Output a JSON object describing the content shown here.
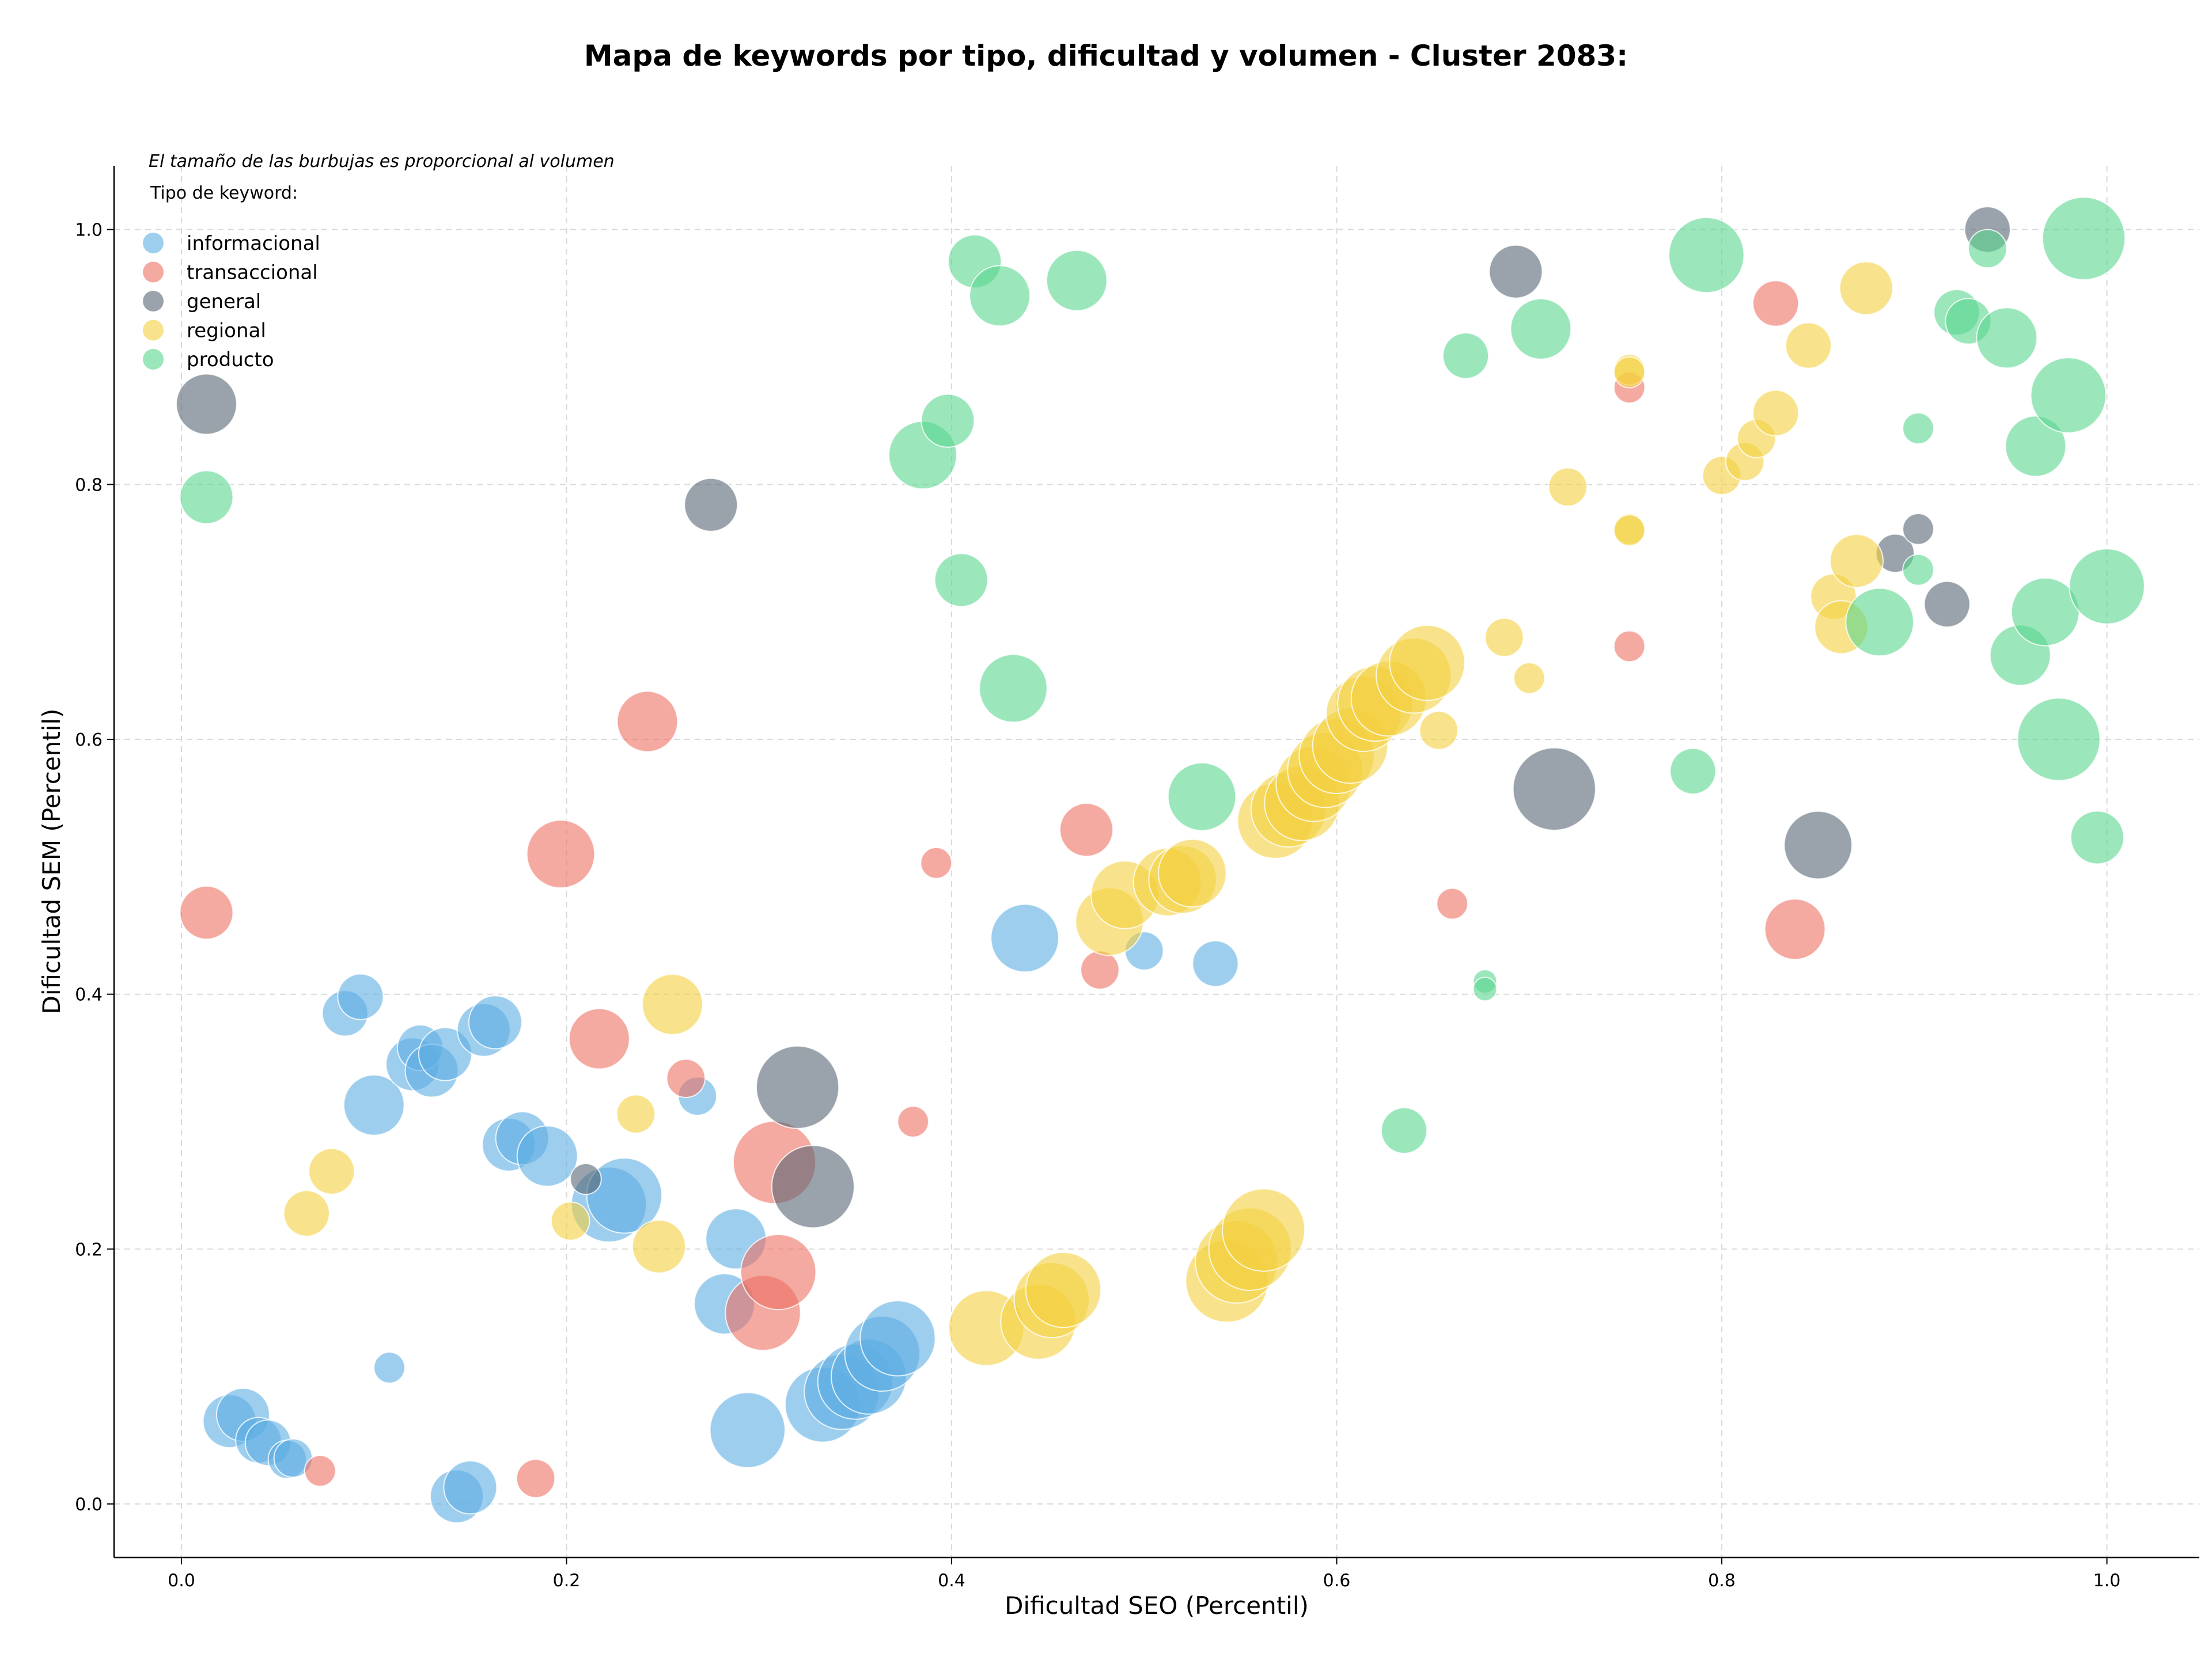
{
  "chart_data": {
    "type": "scatter",
    "title": "Mapa de keywords por tipo, dificultad y volumen - Cluster 2083:",
    "xlabel": "Dificultad SEO (Percentil)",
    "ylabel": "Dificultad SEM (Percentil)",
    "xlim": [
      -0.035,
      1.048
    ],
    "ylim": [
      -0.042,
      1.05
    ],
    "x_ticks": [
      "0.0",
      "0.2",
      "0.4",
      "0.6",
      "0.8",
      "1.0"
    ],
    "y_ticks": [
      "0.0",
      "0.2",
      "0.4",
      "0.6",
      "0.8",
      "1.0"
    ],
    "grid": true,
    "note": "El tamaño de las burbujas es proporcional al volumen",
    "legend_title": "Tipo de keyword:",
    "legend_position": "top-left",
    "size_scale": "relative volume (1-10)",
    "series": [
      {
        "name": "informacional",
        "color": "#5DADE2",
        "points": [
          [
            0.025,
            0.065,
            5
          ],
          [
            0.032,
            0.07,
            5
          ],
          [
            0.04,
            0.05,
            4
          ],
          [
            0.045,
            0.048,
            4
          ],
          [
            0.055,
            0.035,
            3
          ],
          [
            0.058,
            0.036,
            3
          ],
          [
            0.108,
            0.107,
            2
          ],
          [
            0.143,
            0.006,
            5
          ],
          [
            0.15,
            0.013,
            5
          ],
          [
            0.085,
            0.385,
            4
          ],
          [
            0.093,
            0.398,
            4
          ],
          [
            0.1,
            0.313,
            6
          ],
          [
            0.12,
            0.345,
            5
          ],
          [
            0.124,
            0.358,
            4
          ],
          [
            0.13,
            0.34,
            5
          ],
          [
            0.137,
            0.353,
            5
          ],
          [
            0.157,
            0.372,
            5
          ],
          [
            0.163,
            0.378,
            5
          ],
          [
            0.17,
            0.282,
            5
          ],
          [
            0.177,
            0.287,
            5
          ],
          [
            0.19,
            0.273,
            6
          ],
          [
            0.222,
            0.235,
            8
          ],
          [
            0.23,
            0.242,
            8
          ],
          [
            0.268,
            0.32,
            3
          ],
          [
            0.282,
            0.157,
            6
          ],
          [
            0.288,
            0.208,
            6
          ],
          [
            0.294,
            0.058,
            8
          ],
          [
            0.333,
            0.078,
            8
          ],
          [
            0.343,
            0.088,
            8
          ],
          [
            0.35,
            0.096,
            8
          ],
          [
            0.357,
            0.1,
            8
          ],
          [
            0.364,
            0.118,
            8
          ],
          [
            0.372,
            0.13,
            8
          ],
          [
            0.438,
            0.444,
            7
          ],
          [
            0.5,
            0.434,
            3
          ],
          [
            0.537,
            0.424,
            4
          ]
        ]
      },
      {
        "name": "transaccional",
        "color": "#EC7063",
        "points": [
          [
            0.013,
            0.464,
            5
          ],
          [
            0.072,
            0.026,
            2
          ],
          [
            0.184,
            0.02,
            3
          ],
          [
            0.197,
            0.51,
            7
          ],
          [
            0.217,
            0.365,
            6
          ],
          [
            0.242,
            0.614,
            6
          ],
          [
            0.262,
            0.334,
            3
          ],
          [
            0.302,
            0.15,
            8
          ],
          [
            0.308,
            0.268,
            9
          ],
          [
            0.31,
            0.182,
            8
          ],
          [
            0.38,
            0.3,
            2
          ],
          [
            0.392,
            0.503,
            2
          ],
          [
            0.47,
            0.529,
            5
          ],
          [
            0.477,
            0.419,
            3
          ],
          [
            0.66,
            0.471,
            2
          ],
          [
            0.752,
            0.876,
            2
          ],
          [
            0.752,
            0.673,
            2
          ],
          [
            0.828,
            0.942,
            4
          ],
          [
            0.838,
            0.451,
            6
          ]
        ]
      },
      {
        "name": "general",
        "color": "#566573",
        "points": [
          [
            0.013,
            0.863,
            6
          ],
          [
            0.21,
            0.255,
            2
          ],
          [
            0.275,
            0.784,
            5
          ],
          [
            0.32,
            0.327,
            9
          ],
          [
            0.328,
            0.249,
            9
          ],
          [
            0.693,
            0.967,
            5
          ],
          [
            0.713,
            0.561,
            9
          ],
          [
            0.85,
            0.517,
            7
          ],
          [
            0.89,
            0.746,
            3
          ],
          [
            0.902,
            0.765,
            2
          ],
          [
            0.917,
            0.706,
            4
          ],
          [
            0.938,
            1.0,
            4
          ]
        ]
      },
      {
        "name": "regional",
        "color": "#F4D03F",
        "points": [
          [
            0.065,
            0.228,
            4
          ],
          [
            0.078,
            0.261,
            4
          ],
          [
            0.202,
            0.222,
            3
          ],
          [
            0.236,
            0.306,
            3
          ],
          [
            0.248,
            0.202,
            5
          ],
          [
            0.255,
            0.392,
            6
          ],
          [
            0.418,
            0.138,
            8
          ],
          [
            0.445,
            0.143,
            8
          ],
          [
            0.452,
            0.16,
            8
          ],
          [
            0.458,
            0.168,
            8
          ],
          [
            0.482,
            0.457,
            7
          ],
          [
            0.49,
            0.478,
            7
          ],
          [
            0.512,
            0.488,
            7
          ],
          [
            0.52,
            0.49,
            7
          ],
          [
            0.525,
            0.495,
            7
          ],
          [
            0.543,
            0.175,
            9
          ],
          [
            0.548,
            0.19,
            9
          ],
          [
            0.555,
            0.2,
            9
          ],
          [
            0.562,
            0.215,
            9
          ],
          [
            0.568,
            0.536,
            8
          ],
          [
            0.575,
            0.545,
            8
          ],
          [
            0.582,
            0.55,
            8
          ],
          [
            0.588,
            0.565,
            8
          ],
          [
            0.594,
            0.576,
            8
          ],
          [
            0.6,
            0.587,
            8
          ],
          [
            0.607,
            0.595,
            8
          ],
          [
            0.614,
            0.62,
            8
          ],
          [
            0.62,
            0.628,
            8
          ],
          [
            0.627,
            0.632,
            8
          ],
          [
            0.64,
            0.65,
            8
          ],
          [
            0.647,
            0.66,
            8
          ],
          [
            0.653,
            0.607,
            3
          ],
          [
            0.687,
            0.68,
            3
          ],
          [
            0.7,
            0.648,
            2
          ],
          [
            0.72,
            0.798,
            3
          ],
          [
            0.752,
            0.89,
            2
          ],
          [
            0.752,
            0.888,
            2
          ],
          [
            0.752,
            0.765,
            2
          ],
          [
            0.752,
            0.764,
            2
          ],
          [
            0.8,
            0.807,
            3
          ],
          [
            0.812,
            0.818,
            3
          ],
          [
            0.818,
            0.836,
            3
          ],
          [
            0.828,
            0.856,
            4
          ],
          [
            0.845,
            0.909,
            4
          ],
          [
            0.858,
            0.712,
            4
          ],
          [
            0.862,
            0.688,
            5
          ],
          [
            0.87,
            0.74,
            5
          ],
          [
            0.875,
            0.954,
            5
          ]
        ]
      },
      {
        "name": "producto",
        "color": "#58D68D",
        "points": [
          [
            0.013,
            0.79,
            5
          ],
          [
            0.385,
            0.823,
            7
          ],
          [
            0.398,
            0.85,
            5
          ],
          [
            0.405,
            0.725,
            5
          ],
          [
            0.412,
            0.975,
            5
          ],
          [
            0.425,
            0.948,
            6
          ],
          [
            0.432,
            0.64,
            7
          ],
          [
            0.465,
            0.96,
            6
          ],
          [
            0.53,
            0.555,
            7
          ],
          [
            0.635,
            0.293,
            4
          ],
          [
            0.667,
            0.901,
            4
          ],
          [
            0.677,
            0.41,
            1
          ],
          [
            0.677,
            0.404,
            1
          ],
          [
            0.706,
            0.922,
            6
          ],
          [
            0.785,
            0.575,
            4
          ],
          [
            0.792,
            0.98,
            8
          ],
          [
            0.882,
            0.692,
            7
          ],
          [
            0.902,
            0.844,
            2
          ],
          [
            0.902,
            0.733,
            2
          ],
          [
            0.922,
            0.935,
            4
          ],
          [
            0.928,
            0.928,
            4
          ],
          [
            0.938,
            0.985,
            3
          ],
          [
            0.948,
            0.915,
            6
          ],
          [
            0.955,
            0.666,
            6
          ],
          [
            0.963,
            0.83,
            6
          ],
          [
            0.968,
            0.7,
            7
          ],
          [
            0.975,
            0.6,
            9
          ],
          [
            0.98,
            0.87,
            8
          ],
          [
            0.988,
            0.993,
            9
          ],
          [
            0.995,
            0.523,
            5
          ],
          [
            1.0,
            0.72,
            8
          ]
        ]
      }
    ]
  }
}
